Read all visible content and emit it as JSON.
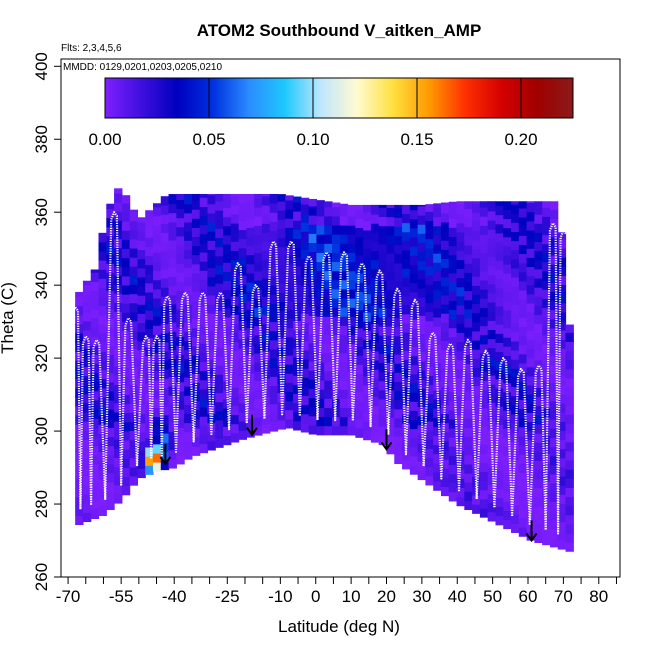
{
  "chart_data": {
    "type": "heatmap",
    "title": "ATOM2 Southbound V_aitken_AMP",
    "subtitle_flights": "Flts: 2,3,4,5,6",
    "subtitle_dates": "MMDD: 0129,0201,0203,0205,0210",
    "xlabel": "Latitude (deg N)",
    "ylabel": "Theta (C)",
    "xlim": [
      -72,
      86
    ],
    "ylim": [
      260,
      402
    ],
    "x_ticks": [
      -70,
      -65,
      -60,
      -55,
      -50,
      -45,
      -40,
      -35,
      -30,
      -25,
      -20,
      -15,
      -10,
      -5,
      0,
      5,
      10,
      15,
      20,
      25,
      30,
      35,
      40,
      45,
      50,
      55,
      60,
      65,
      70,
      75,
      80,
      85
    ],
    "x_tick_labels": [
      "-70",
      "-55",
      "-40",
      "-25",
      "-10",
      "0",
      "10",
      "20",
      "30",
      "40",
      "50",
      "60",
      "70",
      "80"
    ],
    "x_tick_label_values": [
      -70,
      -55,
      -40,
      -25,
      -10,
      0,
      10,
      20,
      30,
      40,
      50,
      60,
      70,
      80
    ],
    "y_ticks": [
      260,
      280,
      300,
      320,
      340,
      360,
      380,
      400
    ],
    "y_tick_labels": [
      "260",
      "280",
      "300",
      "320",
      "340",
      "360",
      "380",
      "400"
    ],
    "colorbar": {
      "min": 0,
      "max": 0.225,
      "ticks": [
        0.0,
        0.05,
        0.1,
        0.15,
        0.2
      ],
      "tick_labels": [
        "0.00",
        "0.05",
        "0.10",
        "0.15",
        "0.20"
      ],
      "colors": [
        "#7f1fff",
        "#3f0fdf",
        "#0000bf",
        "#0030e0",
        "#2a8cff",
        "#1ec8ff",
        "#bfe6ff",
        "#fffbd0",
        "#ffe040",
        "#ff9a00",
        "#ff3000",
        "#d60000",
        "#a00000",
        "#8b1a1a"
      ]
    },
    "data_boundary_top": [
      [
        -68,
        336
      ],
      [
        -67,
        338
      ],
      [
        -62,
        345
      ],
      [
        -60,
        356
      ],
      [
        -57,
        366
      ],
      [
        -55,
        367
      ],
      [
        -50,
        358
      ],
      [
        -42,
        365
      ],
      [
        -20,
        365
      ],
      [
        -10,
        365
      ],
      [
        10,
        362
      ],
      [
        30,
        362
      ],
      [
        40,
        363
      ],
      [
        55,
        363
      ],
      [
        68,
        363
      ],
      [
        71,
        346
      ],
      [
        72,
        322
      ]
    ],
    "data_boundary_bottom": [
      [
        72,
        267
      ],
      [
        61,
        270
      ],
      [
        40,
        280
      ],
      [
        22,
        292
      ],
      [
        20,
        296
      ],
      [
        10,
        299
      ],
      [
        0,
        299
      ],
      [
        -8,
        301
      ],
      [
        -20,
        298
      ],
      [
        -35,
        293
      ],
      [
        -40,
        290
      ],
      [
        -45,
        289
      ],
      [
        -50,
        287
      ],
      [
        -55,
        281
      ],
      [
        -60,
        277
      ],
      [
        -68,
        274
      ]
    ],
    "hotspots": [
      {
        "lat": -47,
        "theta": 291,
        "value": 0.2
      },
      {
        "lat": -46,
        "theta": 292,
        "value": 0.14
      },
      {
        "lat": -44,
        "theta": 296,
        "value": 0.07
      },
      {
        "lat": -45,
        "theta": 300,
        "value": 0.05
      },
      {
        "lat": 5,
        "theta": 348,
        "value": 0.06
      },
      {
        "lat": 15,
        "theta": 345,
        "value": 0.05
      },
      {
        "lat": -30,
        "theta": 340,
        "value": 0.04
      },
      {
        "lat": 25,
        "theta": 342,
        "value": 0.05
      }
    ],
    "profile_crests": [
      [
        -68,
        334
      ],
      [
        -65,
        326
      ],
      [
        -62,
        325
      ],
      [
        -57,
        360
      ],
      [
        -53,
        331
      ],
      [
        -48,
        326
      ],
      [
        -45,
        326
      ],
      [
        -42,
        337
      ],
      [
        -37,
        338
      ],
      [
        -32,
        338
      ],
      [
        -27,
        338
      ],
      [
        -22,
        346
      ],
      [
        -17,
        340
      ],
      [
        -12,
        352
      ],
      [
        -7,
        352
      ],
      [
        -2,
        348
      ],
      [
        3,
        349
      ],
      [
        8,
        349
      ],
      [
        13,
        346
      ],
      [
        18,
        344
      ],
      [
        23,
        339
      ],
      [
        28,
        336
      ],
      [
        33,
        327
      ],
      [
        38,
        324
      ],
      [
        43,
        325
      ],
      [
        48,
        322
      ],
      [
        53,
        320
      ],
      [
        58,
        317
      ],
      [
        63,
        318
      ],
      [
        67,
        357
      ],
      [
        70,
        355
      ]
    ],
    "arrows_lat": [
      -42.5,
      -18,
      20,
      61
    ],
    "arrows_theta": [
      293,
      301,
      297,
      272
    ]
  }
}
